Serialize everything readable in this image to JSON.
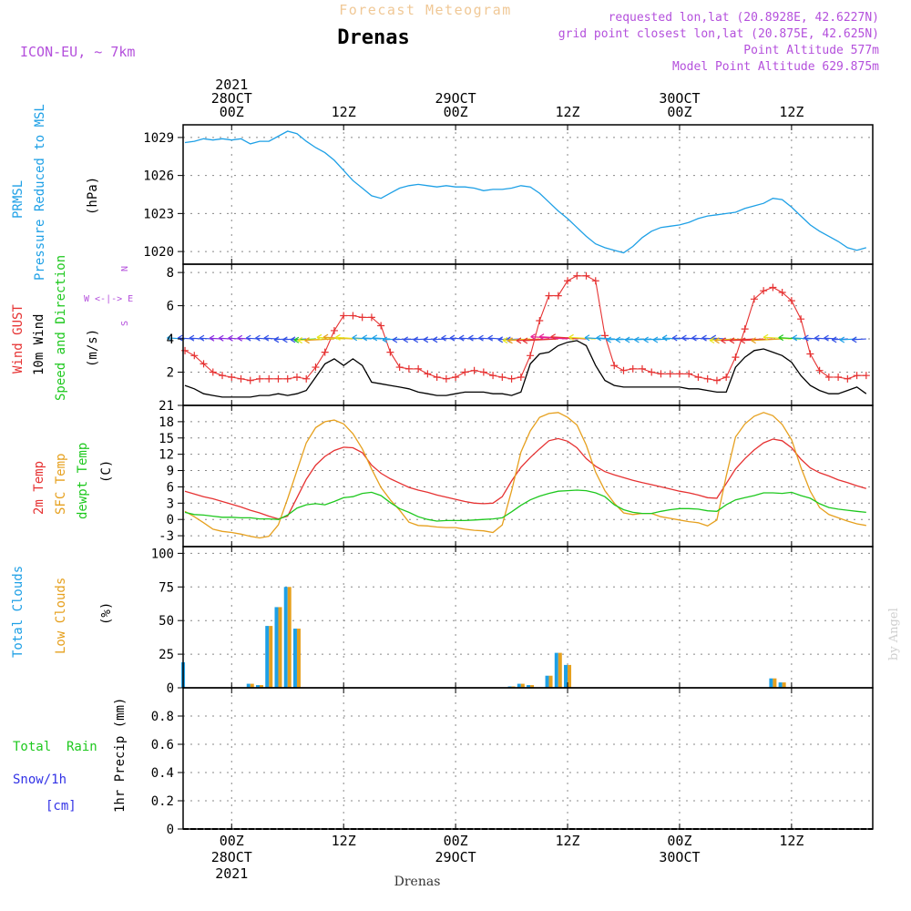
{
  "header": {
    "title": "Forecast Meteogram",
    "station": "Drenas",
    "model": "ICON-EU, ~ 7km",
    "requested": "requested lon,lat (20.8928E, 42.6227N)",
    "grid_point": "grid point closest lon,lat (20.875E, 42.625N)",
    "point_altitude": "Point Altitude 577m",
    "model_altitude": "Model Point Altitude 629.875m",
    "credit": "by Angel",
    "footer_station": "Drenas"
  },
  "time_axis": {
    "top_labels": [
      {
        "t": 0,
        "lines": [
          "2021",
          "28OCT",
          "00Z"
        ]
      },
      {
        "t": 12,
        "lines": [
          "12Z"
        ]
      },
      {
        "t": 24,
        "lines": [
          "29OCT",
          "00Z"
        ]
      },
      {
        "t": 36,
        "lines": [
          "12Z"
        ]
      },
      {
        "t": 48,
        "lines": [
          "30OCT",
          "00Z"
        ]
      },
      {
        "t": 60,
        "lines": [
          "12Z"
        ]
      }
    ],
    "bottom_labels": [
      {
        "t": 0,
        "lines": [
          "00Z",
          "28OCT",
          "2021"
        ]
      },
      {
        "t": 12,
        "lines": [
          "12Z"
        ]
      },
      {
        "t": 24,
        "lines": [
          "00Z",
          "29OCT"
        ]
      },
      {
        "t": 36,
        "lines": [
          "12Z"
        ]
      },
      {
        "t": 48,
        "lines": [
          "00Z",
          "30OCT"
        ]
      },
      {
        "t": 60,
        "lines": [
          "12Z"
        ]
      }
    ]
  },
  "panel_labels": {
    "pressure": {
      "title1": "PRMSL",
      "title2": "Pressure Reduced to MSL",
      "unit": "(hPa)"
    },
    "wind": {
      "title1": "Wind GUST",
      "title2": "10m Wind",
      "title3": "Speed and Direction",
      "unit": "(m/s)",
      "compass_n": "N",
      "compass_s": "S",
      "compass_we": "W <-|-> E"
    },
    "temp": {
      "title1": "2m Temp",
      "title2": "SFC Temp",
      "title3": "dewpt Temp",
      "unit": "(C)"
    },
    "clouds": {
      "title1": "Total Clouds",
      "title2": "Low Clouds",
      "unit": "(%)"
    },
    "precip": {
      "title1": "Total  Rain",
      "title2": "Snow/1h",
      "title3": "[cm]",
      "unit": "1hr Precip (mm)"
    }
  },
  "colors": {
    "pressure": "#1ea0e6",
    "gust": "#e63232",
    "wind": "#000000",
    "temp2m": "#e63232",
    "sfc": "#e6a01e",
    "dewpt": "#1ec81e",
    "total_clouds": "#1ea0e6",
    "low_clouds": "#e6a01e",
    "rain": "#1ec81e",
    "snow": "#3232e6",
    "model": "#b450dc",
    "title_faded": "#f0c896"
  },
  "chart_data": [
    {
      "type": "line",
      "name": "pressure",
      "ylabel": "(hPa)",
      "ylim": [
        1019,
        1030
      ],
      "yticks": [
        1020,
        1023,
        1026,
        1029
      ],
      "x": [
        -5,
        -4,
        -3,
        -2,
        -1,
        0,
        1,
        2,
        3,
        4,
        5,
        6,
        7,
        8,
        9,
        10,
        11,
        12,
        13,
        14,
        15,
        16,
        17,
        18,
        19,
        20,
        21,
        22,
        23,
        24,
        25,
        26,
        27,
        28,
        29,
        30,
        31,
        32,
        33,
        34,
        35,
        36,
        37,
        38,
        39,
        40,
        41,
        42,
        43,
        44,
        45,
        46,
        47,
        48,
        49,
        50,
        51,
        52,
        53,
        54,
        55,
        56,
        57,
        58,
        59,
        60,
        61,
        62,
        63,
        64,
        65,
        66,
        67,
        68
      ],
      "series": [
        {
          "name": "PRMSL",
          "values": [
            1028.6,
            1028.7,
            1028.9,
            1028.8,
            1028.9,
            1028.8,
            1028.9,
            1028.5,
            1028.7,
            1028.7,
            1029.1,
            1029.5,
            1029.3,
            1028.7,
            1028.2,
            1027.8,
            1027.2,
            1026.4,
            1025.6,
            1025,
            1024.4,
            1024.2,
            1024.6,
            1025,
            1025.2,
            1025.3,
            1025.2,
            1025.1,
            1025.2,
            1025.1,
            1025.1,
            1025,
            1024.8,
            1024.9,
            1024.9,
            1025,
            1025.2,
            1025.1,
            1024.6,
            1023.9,
            1023.2,
            1022.6,
            1021.9,
            1021.2,
            1020.6,
            1020.3,
            1020.1,
            1019.9,
            1020.4,
            1021.1,
            1021.6,
            1021.9,
            1022,
            1022.1,
            1022.3,
            1022.6,
            1022.8,
            1022.9,
            1023,
            1023.1,
            1023.4,
            1023.6,
            1023.8,
            1024.2,
            1024.1,
            1023.5,
            1022.8,
            1022.1,
            1021.6,
            1021.2,
            1020.8,
            1020.3,
            1020.1,
            1020.3
          ]
        }
      ]
    },
    {
      "type": "line",
      "name": "wind",
      "ylabel": "(m/s)",
      "ylim": [
        0,
        8.5
      ],
      "yticks": [
        2,
        4,
        6,
        8
      ],
      "x": [
        -5,
        -4,
        -3,
        -2,
        -1,
        0,
        1,
        2,
        3,
        4,
        5,
        6,
        7,
        8,
        9,
        10,
        11,
        12,
        13,
        14,
        15,
        16,
        17,
        18,
        19,
        20,
        21,
        22,
        23,
        24,
        25,
        26,
        27,
        28,
        29,
        30,
        31,
        32,
        33,
        34,
        35,
        36,
        37,
        38,
        39,
        40,
        41,
        42,
        43,
        44,
        45,
        46,
        47,
        48,
        49,
        50,
        51,
        52,
        53,
        54,
        55,
        56,
        57,
        58,
        59,
        60,
        61,
        62,
        63,
        64,
        65,
        66,
        67,
        68
      ],
      "series": [
        {
          "name": "Wind GUST",
          "values": [
            3.3,
            3,
            2.5,
            2,
            1.8,
            1.7,
            1.6,
            1.5,
            1.6,
            1.6,
            1.6,
            1.6,
            1.7,
            1.6,
            2.3,
            3.2,
            4.5,
            5.4,
            5.4,
            5.3,
            5.3,
            4.8,
            3.2,
            2.3,
            2.2,
            2.2,
            1.9,
            1.7,
            1.6,
            1.7,
            2,
            2.1,
            2,
            1.8,
            1.7,
            1.6,
            1.7,
            3,
            5.1,
            6.6,
            6.6,
            7.5,
            7.8,
            7.8,
            7.5,
            4.2,
            2.4,
            2.1,
            2.2,
            2.2,
            2,
            1.9,
            1.9,
            1.9,
            1.9,
            1.7,
            1.6,
            1.5,
            1.7,
            2.9,
            4.6,
            6.4,
            6.9,
            7.1,
            6.8,
            6.3,
            5.2,
            3.1,
            2.1,
            1.7,
            1.7,
            1.6,
            1.8,
            1.8
          ]
        },
        {
          "name": "10m Wind",
          "values": [
            1.2,
            1,
            0.7,
            0.6,
            0.5,
            0.5,
            0.5,
            0.5,
            0.6,
            0.6,
            0.7,
            0.6,
            0.7,
            0.9,
            1.7,
            2.5,
            2.8,
            2.4,
            2.8,
            2.4,
            1.4,
            1.3,
            1.2,
            1.1,
            1,
            0.8,
            0.7,
            0.6,
            0.6,
            0.7,
            0.8,
            0.8,
            0.8,
            0.7,
            0.7,
            0.6,
            0.8,
            2.5,
            3.1,
            3.2,
            3.6,
            3.8,
            3.9,
            3.6,
            2.4,
            1.5,
            1.2,
            1.1,
            1.1,
            1.1,
            1.1,
            1.1,
            1.1,
            1.1,
            1,
            1,
            0.9,
            0.8,
            0.8,
            2.3,
            2.9,
            3.3,
            3.4,
            3.2,
            3,
            2.6,
            1.8,
            1.2,
            0.9,
            0.7,
            0.7,
            0.9,
            1.1,
            0.7
          ]
        }
      ]
    },
    {
      "type": "line",
      "name": "temperature",
      "ylabel": "(C)",
      "ylim": [
        -5,
        21
      ],
      "yticks": [
        -3,
        0,
        3,
        6,
        9,
        12,
        15,
        18,
        21
      ],
      "x": [
        -5,
        -4,
        -3,
        -2,
        -1,
        0,
        1,
        2,
        3,
        4,
        5,
        6,
        7,
        8,
        9,
        10,
        11,
        12,
        13,
        14,
        15,
        16,
        17,
        18,
        19,
        20,
        21,
        22,
        23,
        24,
        25,
        26,
        27,
        28,
        29,
        30,
        31,
        32,
        33,
        34,
        35,
        36,
        37,
        38,
        39,
        40,
        41,
        42,
        43,
        44,
        45,
        46,
        47,
        48,
        49,
        50,
        51,
        52,
        53,
        54,
        55,
        56,
        57,
        58,
        59,
        60,
        61,
        62,
        63,
        64,
        65,
        66,
        67,
        68
      ],
      "series": [
        {
          "name": "2m Temp",
          "values": [
            5.2,
            4.7,
            4.2,
            3.8,
            3.3,
            2.8,
            2.3,
            1.7,
            1.2,
            0.6,
            0.1,
            0.6,
            4,
            7.4,
            10,
            11.6,
            12.7,
            13.3,
            13.2,
            12.3,
            10,
            8.5,
            7.5,
            6.7,
            5.9,
            5.4,
            5,
            4.5,
            4.1,
            3.7,
            3.3,
            3,
            2.9,
            3,
            4.2,
            7.1,
            9.6,
            11.4,
            13,
            14.5,
            14.9,
            14.4,
            13.2,
            11.2,
            9.8,
            8.8,
            8.2,
            7.7,
            7.2,
            6.8,
            6.4,
            6,
            5.6,
            5.2,
            4.9,
            4.5,
            4,
            3.9,
            6.6,
            9.3,
            11.2,
            12.8,
            14.1,
            14.8,
            14.5,
            13.2,
            11.1,
            9.5,
            8.6,
            8,
            7.3,
            6.8,
            6.2,
            5.7
          ]
        },
        {
          "name": "SFC Temp",
          "values": [
            1.5,
            0.5,
            -0.6,
            -1.8,
            -2.2,
            -2.4,
            -2.7,
            -3.1,
            -3.4,
            -3.1,
            -1,
            3.8,
            9,
            14.1,
            16.9,
            18,
            18.3,
            17.6,
            15.8,
            13,
            9.3,
            5.9,
            3.6,
            1.7,
            -0.5,
            -1.1,
            -1.2,
            -1.4,
            -1.5,
            -1.5,
            -1.8,
            -2,
            -2.1,
            -2.4,
            -1,
            5.3,
            12.4,
            16.3,
            18.8,
            19.5,
            19.7,
            18.8,
            17.4,
            13.7,
            8.7,
            5.3,
            3,
            1.2,
            0.9,
            1.1,
            1.1,
            0.5,
            0.2,
            -0.1,
            -0.4,
            -0.6,
            -1.2,
            -0.1,
            8,
            15.2,
            17.6,
            19,
            19.7,
            19.1,
            17.5,
            14.7,
            9.6,
            5.2,
            2.2,
            0.9,
            0.3,
            -0.3,
            -0.8,
            -1.1
          ]
        },
        {
          "name": "dewpt Temp",
          "values": [
            1.3,
            0.9,
            0.8,
            0.6,
            0.4,
            0.4,
            0.3,
            0.3,
            0.1,
            0.1,
            0,
            0.8,
            2.1,
            2.7,
            2.9,
            2.7,
            3.3,
            4,
            4.2,
            4.8,
            5,
            4.4,
            3.1,
            2,
            1.3,
            0.5,
            0,
            -0.3,
            -0.2,
            -0.2,
            -0.2,
            -0.1,
            0,
            0.1,
            0.3,
            1.4,
            2.6,
            3.6,
            4.3,
            4.8,
            5.2,
            5.3,
            5.4,
            5.3,
            4.9,
            4.2,
            2.7,
            1.8,
            1.3,
            1.1,
            1.1,
            1.5,
            1.8,
            2,
            2,
            1.9,
            1.6,
            1.5,
            2.7,
            3.6,
            4,
            4.4,
            4.9,
            4.9,
            4.8,
            5,
            4.4,
            3.9,
            2.9,
            2.2,
            1.9,
            1.7,
            1.5,
            1.3
          ]
        }
      ]
    },
    {
      "type": "bar",
      "name": "clouds",
      "ylabel": "(%)",
      "ylim": [
        0,
        105
      ],
      "yticks": [
        0,
        25,
        50,
        75,
        100
      ],
      "x": [
        -5,
        2,
        3,
        4,
        5,
        6,
        7,
        30,
        31,
        32,
        34,
        35,
        36,
        58,
        59
      ],
      "series": [
        {
          "name": "Total Clouds",
          "values": [
            19,
            3,
            2,
            46,
            60,
            75,
            44,
            1,
            3,
            2,
            9,
            26,
            17,
            7,
            4
          ]
        },
        {
          "name": "Low Clouds",
          "values": [
            0,
            3,
            2,
            46,
            60,
            75,
            44,
            1,
            3,
            2,
            9,
            26,
            17,
            7,
            4
          ]
        }
      ]
    },
    {
      "type": "bar",
      "name": "precipitation",
      "ylabel": "1hr Precip (mm)",
      "ylim": [
        0,
        1
      ],
      "yticks": [
        0,
        0.2,
        0.4,
        0.6,
        0.8
      ],
      "x": [],
      "series": [
        {
          "name": "Total Rain",
          "values": []
        },
        {
          "name": "Snow/1h",
          "values": []
        }
      ]
    }
  ]
}
